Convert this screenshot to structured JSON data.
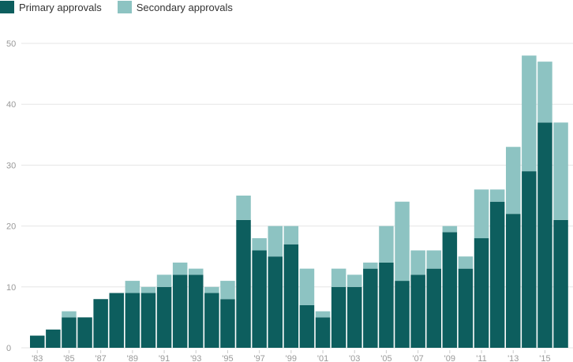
{
  "legend": {
    "primary_label": "Primary approvals",
    "secondary_label": "Secondary approvals"
  },
  "colors": {
    "primary": "#0d5e5e",
    "secondary": "#8dc3c2",
    "gridline": "#e6e6e6",
    "axis_text": "#999999"
  },
  "chart_data": {
    "type": "bar",
    "stacked": true,
    "title": "",
    "xlabel": "",
    "ylabel": "",
    "ylim": [
      0,
      50
    ],
    "yticks": [
      0,
      10,
      20,
      30,
      40,
      50
    ],
    "grid": true,
    "legend_position": "top-left",
    "categories": [
      1983,
      1984,
      1985,
      1986,
      1987,
      1988,
      1989,
      1990,
      1991,
      1992,
      1993,
      1994,
      1995,
      1996,
      1997,
      1998,
      1999,
      2000,
      2001,
      2002,
      2003,
      2004,
      2005,
      2006,
      2007,
      2008,
      2009,
      2010,
      2011,
      2012,
      2013,
      2014,
      2015,
      2016
    ],
    "x_tick_labels": [
      "'83",
      "'85",
      "'87",
      "'89",
      "'91",
      "'93",
      "'95",
      "'97",
      "'99",
      "'01",
      "'03",
      "'05",
      "'07",
      "'09",
      "'11",
      "'13",
      "'15"
    ],
    "series": [
      {
        "name": "Primary approvals",
        "values": [
          2,
          3,
          5,
          5,
          8,
          9,
          9,
          9,
          10,
          12,
          12,
          9,
          8,
          21,
          16,
          15,
          17,
          7,
          5,
          10,
          10,
          13,
          14,
          11,
          12,
          13,
          19,
          13,
          18,
          24,
          22,
          29,
          37,
          21
        ]
      },
      {
        "name": "Secondary approvals",
        "values": [
          0,
          0,
          1,
          0,
          0,
          0,
          2,
          1,
          2,
          2,
          1,
          1,
          3,
          4,
          2,
          5,
          3,
          6,
          1,
          3,
          2,
          1,
          6,
          13,
          4,
          3,
          1,
          2,
          8,
          2,
          11,
          19,
          10,
          16
        ]
      }
    ]
  }
}
